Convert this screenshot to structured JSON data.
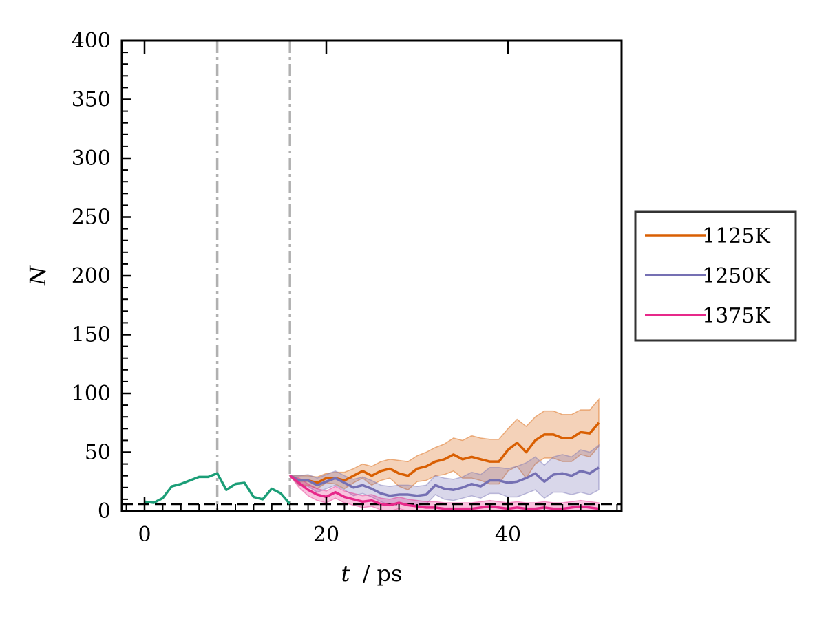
{
  "chart_data": {
    "type": "line",
    "title": "",
    "xlabel_var": "t",
    "xlabel_unit": "/ ps",
    "ylabel": "N",
    "xlim": [
      -2.5,
      52.5
    ],
    "ylim": [
      0,
      400
    ],
    "xticks": [
      0,
      20,
      40
    ],
    "yticks": [
      0,
      50,
      100,
      150,
      200,
      250,
      300,
      350,
      400
    ],
    "grid": false,
    "vlines": [
      8,
      16
    ],
    "hline": 6,
    "legend_position": "outside-right",
    "initial_series": {
      "color": "#1b9e77",
      "x": [
        0,
        1,
        2,
        3,
        4,
        5,
        6,
        7,
        8,
        9,
        10,
        11,
        12,
        13,
        14,
        15,
        16
      ],
      "y": [
        8,
        7,
        11,
        21,
        23,
        26,
        29,
        29,
        32,
        18,
        23,
        24,
        12,
        10,
        19,
        15,
        6
      ]
    },
    "series": [
      {
        "name": "1125K",
        "color": "#d95f02",
        "x": [
          16,
          17,
          18,
          19,
          20,
          21,
          22,
          23,
          24,
          25,
          26,
          27,
          28,
          29,
          30,
          31,
          32,
          33,
          34,
          35,
          36,
          37,
          38,
          39,
          40,
          41,
          42,
          43,
          44,
          45,
          46,
          47,
          48,
          49,
          50
        ],
        "y": [
          30,
          26,
          26,
          24,
          28,
          28,
          26,
          30,
          34,
          30,
          34,
          36,
          32,
          30,
          36,
          38,
          42,
          44,
          48,
          44,
          46,
          44,
          42,
          42,
          52,
          58,
          50,
          60,
          65,
          65,
          62,
          62,
          67,
          66,
          75
        ],
        "upper": [
          30,
          30,
          30,
          29,
          32,
          33,
          33,
          36,
          40,
          38,
          42,
          44,
          43,
          42,
          47,
          50,
          54,
          57,
          62,
          60,
          64,
          62,
          61,
          61,
          70,
          78,
          72,
          80,
          85,
          85,
          82,
          82,
          86,
          86,
          95
        ],
        "lower": [
          30,
          22,
          22,
          19,
          24,
          23,
          19,
          24,
          28,
          22,
          26,
          28,
          21,
          18,
          25,
          26,
          30,
          31,
          34,
          28,
          28,
          26,
          23,
          23,
          34,
          38,
          28,
          40,
          45,
          45,
          42,
          42,
          48,
          46,
          55
        ]
      },
      {
        "name": "1250K",
        "color": "#7570b3",
        "x": [
          16,
          17,
          18,
          19,
          20,
          21,
          22,
          23,
          24,
          25,
          26,
          27,
          28,
          29,
          30,
          31,
          32,
          33,
          34,
          35,
          36,
          37,
          38,
          39,
          40,
          41,
          42,
          43,
          44,
          45,
          46,
          47,
          48,
          49,
          50
        ],
        "y": [
          30,
          26,
          26,
          22,
          25,
          28,
          24,
          20,
          22,
          19,
          15,
          13,
          14,
          14,
          13,
          14,
          22,
          19,
          18,
          20,
          23,
          21,
          26,
          26,
          24,
          25,
          28,
          32,
          25,
          31,
          32,
          30,
          34,
          32,
          37
        ],
        "upper": [
          30,
          30,
          31,
          28,
          31,
          34,
          30,
          27,
          29,
          26,
          22,
          21,
          22,
          22,
          21,
          22,
          30,
          28,
          27,
          29,
          33,
          31,
          37,
          37,
          36,
          38,
          41,
          46,
          39,
          46,
          48,
          46,
          52,
          50,
          56
        ],
        "lower": [
          30,
          22,
          21,
          16,
          19,
          22,
          18,
          13,
          15,
          12,
          8,
          5,
          6,
          6,
          5,
          6,
          14,
          10,
          9,
          11,
          13,
          11,
          15,
          15,
          12,
          12,
          15,
          18,
          11,
          16,
          16,
          14,
          16,
          14,
          18
        ]
      },
      {
        "name": "1375K",
        "color": "#e7298a",
        "x": [
          16,
          17,
          18,
          19,
          20,
          21,
          22,
          23,
          24,
          25,
          26,
          27,
          28,
          29,
          30,
          31,
          32,
          33,
          34,
          35,
          36,
          37,
          38,
          39,
          40,
          41,
          42,
          43,
          44,
          45,
          46,
          47,
          48,
          49,
          50
        ],
        "y": [
          30,
          24,
          18,
          14,
          12,
          16,
          12,
          10,
          8,
          9,
          6,
          5,
          7,
          5,
          4,
          3,
          3,
          2,
          2,
          2,
          2,
          3,
          4,
          3,
          2,
          3,
          2,
          2,
          3,
          2,
          2,
          3,
          4,
          3,
          2
        ],
        "upper": [
          30,
          28,
          23,
          19,
          17,
          21,
          17,
          15,
          13,
          14,
          11,
          10,
          12,
          10,
          9,
          8,
          8,
          7,
          7,
          7,
          7,
          8,
          9,
          8,
          7,
          8,
          7,
          7,
          8,
          7,
          7,
          8,
          9,
          8,
          7
        ],
        "lower": [
          30,
          20,
          13,
          9,
          7,
          11,
          7,
          5,
          3,
          4,
          1,
          0,
          2,
          0,
          0,
          0,
          0,
          0,
          0,
          0,
          0,
          0,
          0,
          0,
          0,
          0,
          0,
          0,
          0,
          0,
          0,
          0,
          0,
          0,
          0
        ]
      }
    ]
  }
}
